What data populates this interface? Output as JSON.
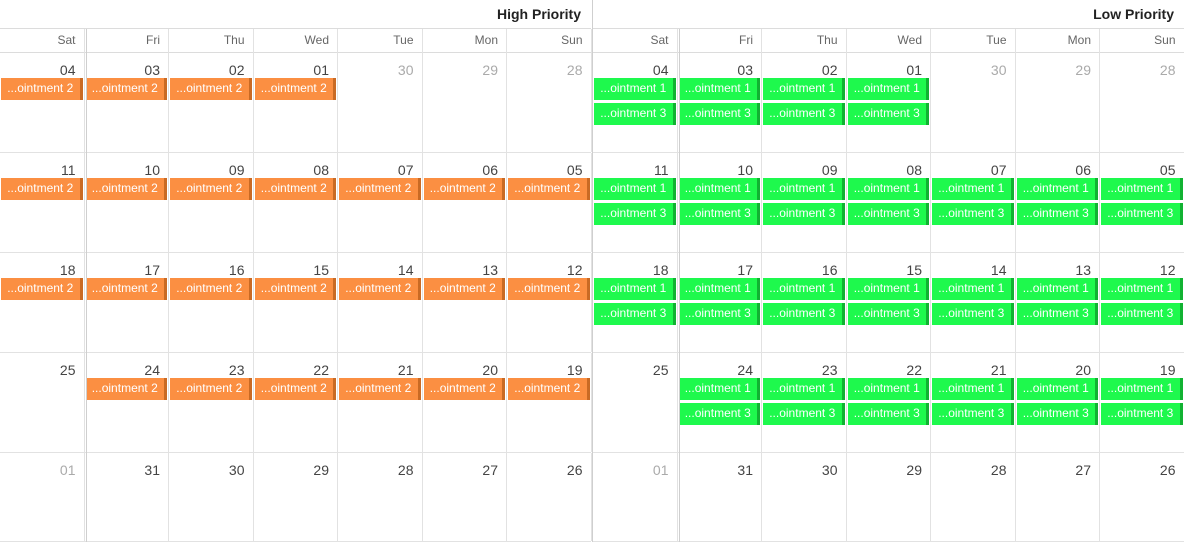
{
  "colors": {
    "high": "#fb8f42",
    "low": "#1ef94d"
  },
  "groups": [
    {
      "title": "High Priority",
      "color": "orange",
      "days": [
        "Sat",
        "Fri",
        "Thu",
        "Wed",
        "Tue",
        "Mon",
        "Sun"
      ],
      "weeks": [
        {
          "dates": [
            "04",
            "03",
            "02",
            "01",
            "30",
            "29",
            "28"
          ],
          "muted": [
            false,
            false,
            false,
            false,
            true,
            true,
            true
          ],
          "appts": [
            [
              "...ointment 2"
            ],
            [
              "...ointment 2"
            ],
            [
              "...ointment 2"
            ],
            [
              "...ointment 2"
            ],
            [],
            [],
            []
          ]
        },
        {
          "dates": [
            "11",
            "10",
            "09",
            "08",
            "07",
            "06",
            "05"
          ],
          "muted": [
            false,
            false,
            false,
            false,
            false,
            false,
            false
          ],
          "appts": [
            [
              "...ointment 2"
            ],
            [
              "...ointment 2"
            ],
            [
              "...ointment 2"
            ],
            [
              "...ointment 2"
            ],
            [
              "...ointment 2"
            ],
            [
              "...ointment 2"
            ],
            [
              "...ointment 2"
            ]
          ]
        },
        {
          "dates": [
            "18",
            "17",
            "16",
            "15",
            "14",
            "13",
            "12"
          ],
          "muted": [
            false,
            false,
            false,
            false,
            false,
            false,
            false
          ],
          "appts": [
            [
              "...ointment 2"
            ],
            [
              "...ointment 2"
            ],
            [
              "...ointment 2"
            ],
            [
              "...ointment 2"
            ],
            [
              "...ointment 2"
            ],
            [
              "...ointment 2"
            ],
            [
              "...ointment 2"
            ]
          ]
        },
        {
          "dates": [
            "25",
            "24",
            "23",
            "22",
            "21",
            "20",
            "19"
          ],
          "muted": [
            false,
            false,
            false,
            false,
            false,
            false,
            false
          ],
          "appts": [
            [],
            [
              "...ointment 2"
            ],
            [
              "...ointment 2"
            ],
            [
              "...ointment 2"
            ],
            [
              "...ointment 2"
            ],
            [
              "...ointment 2"
            ],
            [
              "...ointment 2"
            ]
          ]
        },
        {
          "dates": [
            "01",
            "31",
            "30",
            "29",
            "28",
            "27",
            "26"
          ],
          "muted": [
            true,
            false,
            false,
            false,
            false,
            false,
            false
          ],
          "appts": [
            [],
            [],
            [],
            [],
            [],
            [],
            []
          ]
        }
      ]
    },
    {
      "title": "Low Priority",
      "color": "green",
      "days": [
        "Sat",
        "Fri",
        "Thu",
        "Wed",
        "Tue",
        "Mon",
        "Sun"
      ],
      "weeks": [
        {
          "dates": [
            "04",
            "03",
            "02",
            "01",
            "30",
            "29",
            "28"
          ],
          "muted": [
            false,
            false,
            false,
            false,
            true,
            true,
            true
          ],
          "appts": [
            [
              "...ointment 1",
              "...ointment 3"
            ],
            [
              "...ointment 1",
              "...ointment 3"
            ],
            [
              "...ointment 1",
              "...ointment 3"
            ],
            [
              "...ointment 1",
              "...ointment 3"
            ],
            [],
            [],
            []
          ]
        },
        {
          "dates": [
            "11",
            "10",
            "09",
            "08",
            "07",
            "06",
            "05"
          ],
          "muted": [
            false,
            false,
            false,
            false,
            false,
            false,
            false
          ],
          "appts": [
            [
              "...ointment 1",
              "...ointment 3"
            ],
            [
              "...ointment 1",
              "...ointment 3"
            ],
            [
              "...ointment 1",
              "...ointment 3"
            ],
            [
              "...ointment 1",
              "...ointment 3"
            ],
            [
              "...ointment 1",
              "...ointment 3"
            ],
            [
              "...ointment 1",
              "...ointment 3"
            ],
            [
              "...ointment 1",
              "...ointment 3"
            ]
          ]
        },
        {
          "dates": [
            "18",
            "17",
            "16",
            "15",
            "14",
            "13",
            "12"
          ],
          "muted": [
            false,
            false,
            false,
            false,
            false,
            false,
            false
          ],
          "appts": [
            [
              "...ointment 1",
              "...ointment 3"
            ],
            [
              "...ointment 1",
              "...ointment 3"
            ],
            [
              "...ointment 1",
              "...ointment 3"
            ],
            [
              "...ointment 1",
              "...ointment 3"
            ],
            [
              "...ointment 1",
              "...ointment 3"
            ],
            [
              "...ointment 1",
              "...ointment 3"
            ],
            [
              "...ointment 1",
              "...ointment 3"
            ]
          ]
        },
        {
          "dates": [
            "25",
            "24",
            "23",
            "22",
            "21",
            "20",
            "19"
          ],
          "muted": [
            false,
            false,
            false,
            false,
            false,
            false,
            false
          ],
          "appts": [
            [],
            [
              "...ointment 1",
              "...ointment 3"
            ],
            [
              "...ointment 1",
              "...ointment 3"
            ],
            [
              "...ointment 1",
              "...ointment 3"
            ],
            [
              "...ointment 1",
              "...ointment 3"
            ],
            [
              "...ointment 1",
              "...ointment 3"
            ],
            [
              "...ointment 1",
              "...ointment 3"
            ]
          ]
        },
        {
          "dates": [
            "01",
            "31",
            "30",
            "29",
            "28",
            "27",
            "26"
          ],
          "muted": [
            true,
            false,
            false,
            false,
            false,
            false,
            false
          ],
          "appts": [
            [],
            [],
            [],
            [],
            [],
            [],
            []
          ]
        }
      ]
    }
  ]
}
